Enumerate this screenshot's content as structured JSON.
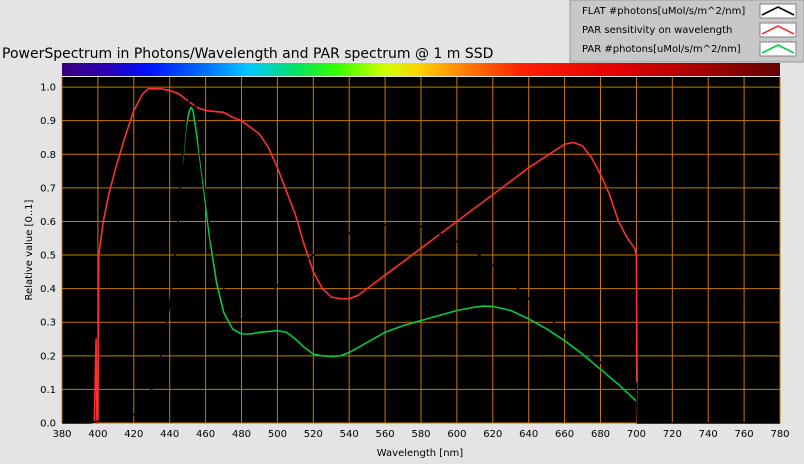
{
  "chart_data": {
    "type": "line",
    "title": "PowerSpectrum in Photons/Wavelength and PAR spectrum @ 1 m SSD",
    "xlabel": "Wavelength [nm]",
    "ylabel": "Relative value [0..1]",
    "xlim": [
      380,
      780
    ],
    "ylim": [
      0,
      1.03
    ],
    "xticks": [
      380,
      400,
      420,
      440,
      460,
      480,
      500,
      520,
      540,
      560,
      580,
      600,
      620,
      640,
      660,
      680,
      700,
      720,
      740,
      760,
      780
    ],
    "yticks": [
      0.0,
      0.1,
      0.2,
      0.3,
      0.4,
      0.5,
      0.6,
      0.7,
      0.8,
      0.9,
      1.0
    ],
    "grid": true,
    "legend_position": "top-right",
    "colors": {
      "plot_bg": "#000000",
      "grid": "#c87800",
      "frame": "#e4e4e4"
    },
    "series": [
      {
        "name": "FLAT #photons[uMol/s/m^2/nm]",
        "color": "#000000",
        "points": [
          [
            380,
            0
          ],
          [
            396,
            0
          ],
          [
            400,
            0.005
          ],
          [
            405,
            0.008
          ],
          [
            410,
            0.01
          ],
          [
            415,
            0.015
          ],
          [
            420,
            0.025
          ],
          [
            425,
            0.05
          ],
          [
            430,
            0.1
          ],
          [
            435,
            0.2
          ],
          [
            440,
            0.35
          ],
          [
            444,
            0.55
          ],
          [
            447,
            0.78
          ],
          [
            449,
            0.9
          ],
          [
            451,
            0.97
          ],
          [
            452,
            0.995
          ],
          [
            453,
            0.99
          ],
          [
            455,
            0.92
          ],
          [
            457,
            0.8
          ],
          [
            460,
            0.68
          ],
          [
            463,
            0.55
          ],
          [
            466,
            0.46
          ],
          [
            470,
            0.4
          ],
          [
            475,
            0.33
          ],
          [
            478,
            0.31
          ],
          [
            482,
            0.305
          ],
          [
            486,
            0.31
          ],
          [
            490,
            0.33
          ],
          [
            495,
            0.37
          ],
          [
            500,
            0.41
          ],
          [
            510,
            0.46
          ],
          [
            520,
            0.5
          ],
          [
            530,
            0.535
          ],
          [
            540,
            0.565
          ],
          [
            550,
            0.58
          ],
          [
            560,
            0.59
          ],
          [
            565,
            0.595
          ],
          [
            570,
            0.595
          ],
          [
            580,
            0.585
          ],
          [
            590,
            0.565
          ],
          [
            600,
            0.54
          ],
          [
            610,
            0.51
          ],
          [
            620,
            0.47
          ],
          [
            630,
            0.42
          ],
          [
            640,
            0.37
          ],
          [
            650,
            0.32
          ],
          [
            660,
            0.27
          ],
          [
            670,
            0.22
          ],
          [
            680,
            0.18
          ],
          [
            690,
            0.14
          ],
          [
            695,
            0.128
          ],
          [
            700,
            0.12
          ],
          [
            700.5,
            0
          ],
          [
            780,
            0
          ]
        ]
      },
      {
        "name": "PAR sensitivity on wavelength",
        "color": "#ff3030",
        "points": [
          [
            398,
            0
          ],
          [
            399,
            0.25
          ],
          [
            399.5,
            0
          ],
          [
            400,
            0
          ],
          [
            400.5,
            0.5
          ],
          [
            403,
            0.6
          ],
          [
            406,
            0.68
          ],
          [
            410,
            0.76
          ],
          [
            415,
            0.85
          ],
          [
            420,
            0.93
          ],
          [
            425,
            0.98
          ],
          [
            428,
            0.995
          ],
          [
            435,
            0.995
          ],
          [
            440,
            0.99
          ],
          [
            445,
            0.98
          ],
          [
            450,
            0.96
          ],
          [
            455,
            0.94
          ],
          [
            460,
            0.93
          ],
          [
            470,
            0.925
          ],
          [
            475,
            0.91
          ],
          [
            480,
            0.9
          ],
          [
            485,
            0.88
          ],
          [
            490,
            0.86
          ],
          [
            495,
            0.82
          ],
          [
            500,
            0.76
          ],
          [
            505,
            0.69
          ],
          [
            510,
            0.62
          ],
          [
            515,
            0.53
          ],
          [
            520,
            0.45
          ],
          [
            525,
            0.4
          ],
          [
            530,
            0.375
          ],
          [
            535,
            0.37
          ],
          [
            540,
            0.37
          ],
          [
            545,
            0.38
          ],
          [
            550,
            0.4
          ],
          [
            560,
            0.44
          ],
          [
            570,
            0.48
          ],
          [
            580,
            0.52
          ],
          [
            590,
            0.56
          ],
          [
            600,
            0.6
          ],
          [
            610,
            0.64
          ],
          [
            620,
            0.68
          ],
          [
            630,
            0.72
          ],
          [
            640,
            0.76
          ],
          [
            650,
            0.795
          ],
          [
            660,
            0.83
          ],
          [
            665,
            0.835
          ],
          [
            670,
            0.825
          ],
          [
            675,
            0.79
          ],
          [
            680,
            0.74
          ],
          [
            685,
            0.68
          ],
          [
            690,
            0.6
          ],
          [
            695,
            0.55
          ],
          [
            699,
            0.52
          ],
          [
            700,
            0.5
          ],
          [
            700.5,
            0
          ]
        ]
      },
      {
        "name": "PAR #photons[uMol/s/m^2/nm]",
        "color": "#00cc44",
        "points": [
          [
            447,
            0.77
          ],
          [
            449,
            0.88
          ],
          [
            451,
            0.93
          ],
          [
            452,
            0.94
          ],
          [
            453,
            0.93
          ],
          [
            455,
            0.86
          ],
          [
            458,
            0.74
          ],
          [
            462,
            0.56
          ],
          [
            466,
            0.42
          ],
          [
            470,
            0.33
          ],
          [
            475,
            0.28
          ],
          [
            480,
            0.265
          ],
          [
            485,
            0.265
          ],
          [
            490,
            0.27
          ],
          [
            495,
            0.272
          ],
          [
            500,
            0.275
          ],
          [
            505,
            0.27
          ],
          [
            510,
            0.25
          ],
          [
            515,
            0.225
          ],
          [
            520,
            0.205
          ],
          [
            525,
            0.2
          ],
          [
            530,
            0.198
          ],
          [
            535,
            0.2
          ],
          [
            540,
            0.21
          ],
          [
            550,
            0.24
          ],
          [
            560,
            0.27
          ],
          [
            570,
            0.29
          ],
          [
            580,
            0.305
          ],
          [
            590,
            0.32
          ],
          [
            600,
            0.335
          ],
          [
            610,
            0.345
          ],
          [
            615,
            0.348
          ],
          [
            620,
            0.347
          ],
          [
            630,
            0.335
          ],
          [
            640,
            0.31
          ],
          [
            650,
            0.28
          ],
          [
            660,
            0.245
          ],
          [
            670,
            0.205
          ],
          [
            680,
            0.16
          ],
          [
            690,
            0.115
          ],
          [
            700,
            0.065
          ]
        ]
      }
    ]
  }
}
